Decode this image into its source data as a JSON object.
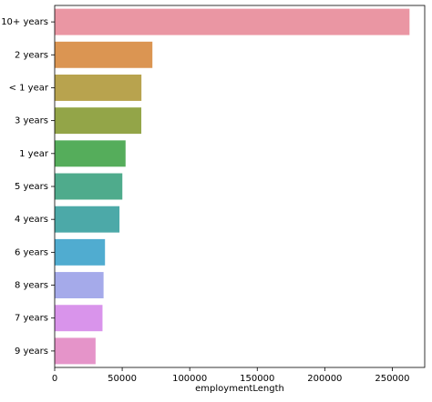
{
  "chart_data": {
    "type": "barh",
    "x_label": "employmentLength",
    "categories": [
      "10+ years",
      "2 years",
      "< 1 year",
      "3 years",
      "1 year",
      "5 years",
      "4 years",
      "6 years",
      "8 years",
      "7 years",
      "9 years"
    ],
    "values": [
      262753,
      72358,
      64237,
      64152,
      52489,
      50102,
      47985,
      37254,
      36192,
      35407,
      30272
    ],
    "colors": [
      "#ea96a3",
      "#db9552",
      "#b8a34e",
      "#93a548",
      "#55ad5b",
      "#4fab8c",
      "#4ca9a8",
      "#50acd0",
      "#a5aaea",
      "#d994eb",
      "#e594c9"
    ],
    "xlim": [
      0,
      274000
    ],
    "xticks": [
      0,
      50000,
      100000,
      150000,
      200000,
      250000
    ]
  }
}
